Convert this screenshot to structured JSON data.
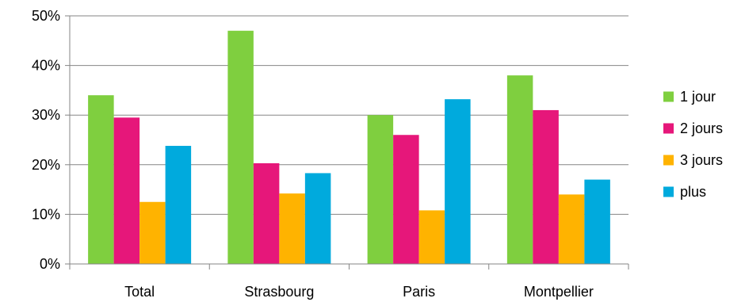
{
  "chart_data": {
    "type": "bar",
    "title": "",
    "xlabel": "",
    "ylabel": "",
    "categories": [
      "Total",
      "Strasbourg",
      "Paris",
      "Montpellier"
    ],
    "series": [
      {
        "name": "1 jour",
        "color": "#7fcf3f",
        "values": [
          34.0,
          47.0,
          30.0,
          38.0
        ]
      },
      {
        "name": "2 jours",
        "color": "#e6177a",
        "values": [
          29.5,
          20.3,
          26.0,
          31.0
        ]
      },
      {
        "name": "3 jours",
        "color": "#ffb300",
        "values": [
          12.5,
          14.2,
          10.8,
          14.0
        ]
      },
      {
        "name": "plus",
        "color": "#00aadd",
        "values": [
          23.8,
          18.3,
          33.2,
          17.0
        ]
      }
    ],
    "ylim": [
      0,
      50
    ],
    "yticks": [
      0,
      10,
      20,
      30,
      40,
      50
    ],
    "ytick_labels": [
      "0%",
      "10%",
      "20%",
      "30%",
      "40%",
      "50%"
    ],
    "grid": true,
    "legend_position": "right"
  }
}
